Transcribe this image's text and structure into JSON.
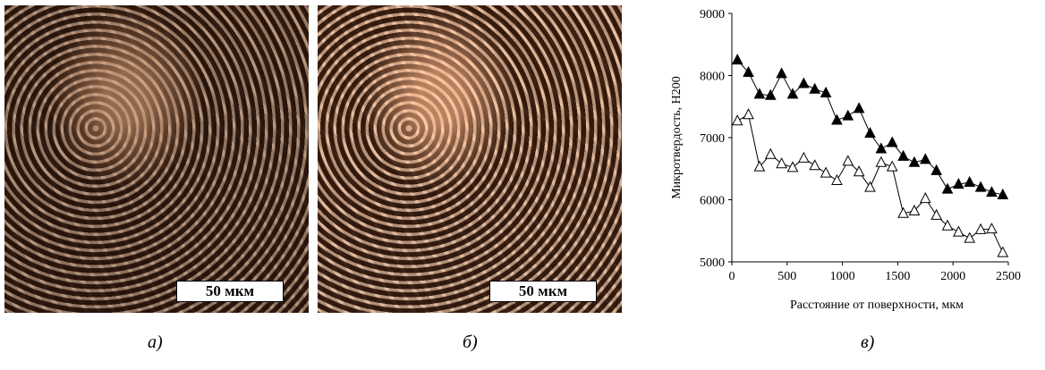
{
  "panels": [
    {
      "label": "а)",
      "scale_bar": "50 мкм"
    },
    {
      "label": "б)",
      "scale_bar": "50 мкм"
    },
    {
      "label": "в)"
    }
  ],
  "chart_data": {
    "type": "line",
    "xlabel": "Расстояние от поверхности, мкм",
    "ylabel": "Микротвердость, H200",
    "x": [
      50,
      150,
      250,
      350,
      450,
      550,
      650,
      750,
      850,
      950,
      1050,
      1150,
      1250,
      1350,
      1450,
      1550,
      1650,
      1750,
      1850,
      1950,
      2050,
      2150,
      2250,
      2350,
      2450
    ],
    "series": [
      {
        "color": "#000000",
        "marker": "filled-triangle",
        "values": [
          8250,
          8050,
          7700,
          7680,
          8030,
          7700,
          7870,
          7780,
          7720,
          7280,
          7350,
          7470,
          7070,
          6820,
          6920,
          6700,
          6600,
          6650,
          6470,
          6170,
          6250,
          6280,
          6200,
          6120,
          6080
        ]
      },
      {
        "color": "#000000",
        "marker": "open-triangle",
        "values": [
          7270,
          7370,
          6530,
          6730,
          6580,
          6520,
          6670,
          6550,
          6430,
          6310,
          6620,
          6450,
          6200,
          6600,
          6530,
          5780,
          5820,
          6020,
          5750,
          5580,
          5480,
          5380,
          5520,
          5530,
          5150
        ]
      }
    ],
    "xlim": [
      0,
      2500
    ],
    "xticks": [
      0,
      500,
      1000,
      1500,
      2000,
      2500
    ],
    "ylim": [
      5000,
      9000
    ],
    "yticks": [
      5000,
      6000,
      7000,
      8000,
      9000
    ]
  }
}
